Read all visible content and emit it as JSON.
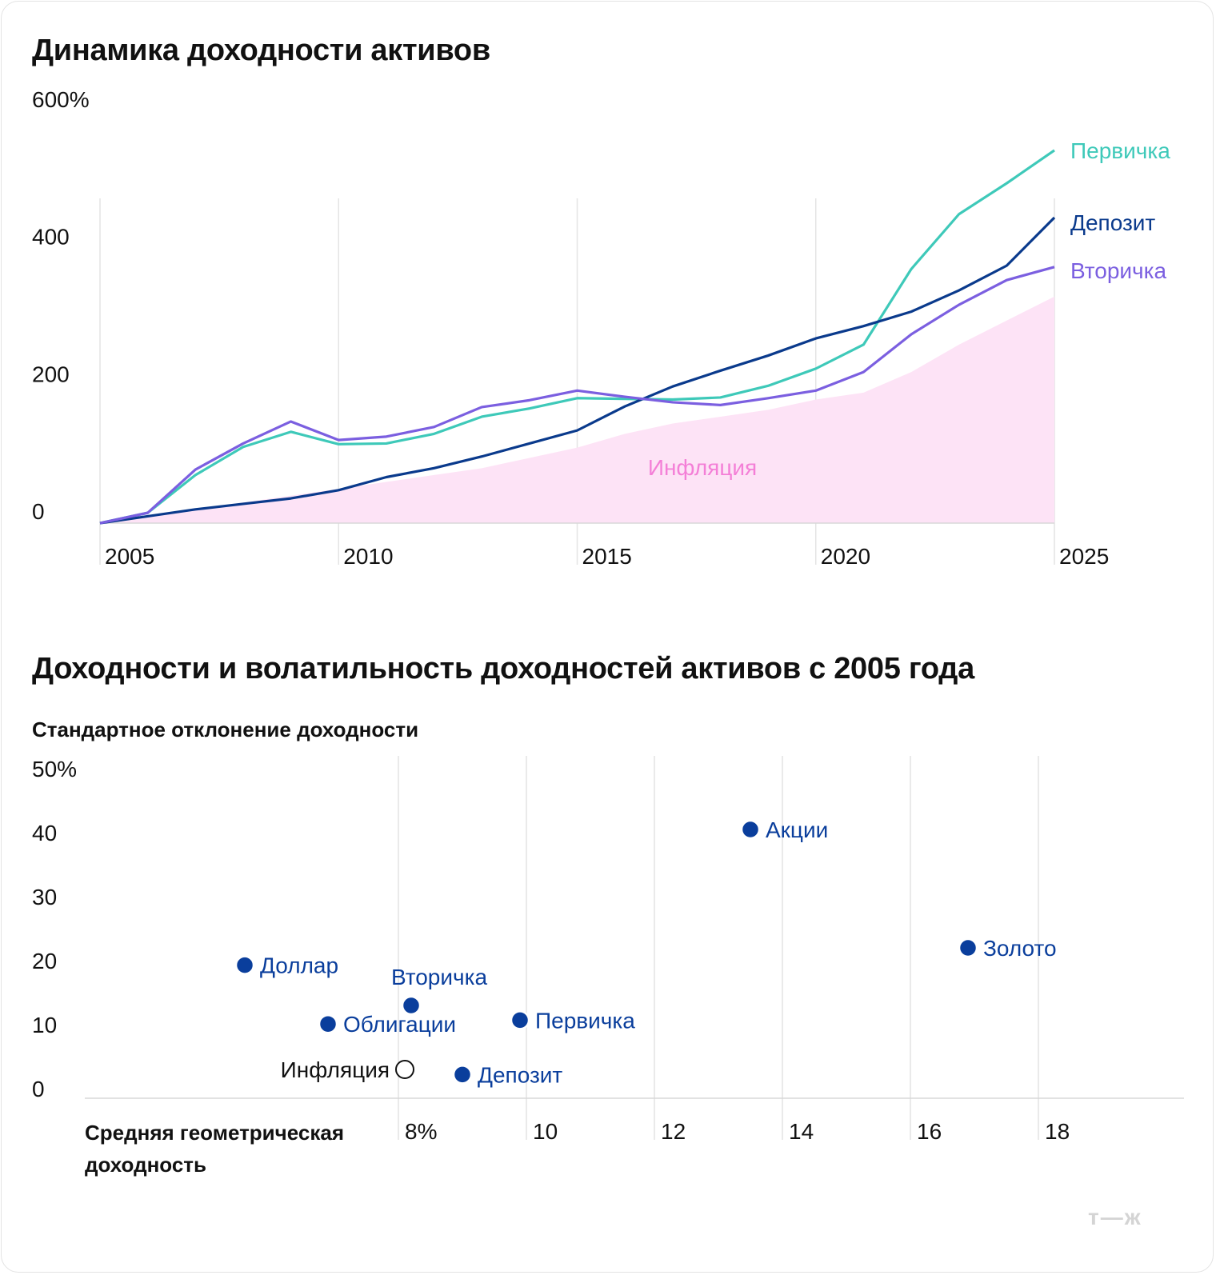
{
  "logo": "т—ж",
  "colors": {
    "pervichka": "#3ec9b9",
    "deposit": "#0a3a8c",
    "vtorichka": "#7b5fe0",
    "inflation_fill": "#fde3f6",
    "inflation_label": "#f47fd7",
    "dot": "#0a3e9c",
    "grid": "#e4e4e4"
  },
  "chart_data": [
    {
      "type": "line",
      "title": "Динамика доходности активов",
      "x_ticks": [
        "2005",
        "2010",
        "2015",
        "2020",
        "2025"
      ],
      "y_ticks": [
        "600%",
        "400",
        "200",
        "0"
      ],
      "ylim": [
        0,
        600
      ],
      "xlim": [
        2005,
        2025
      ],
      "x": [
        2005,
        2006,
        2007,
        2008,
        2009,
        2010,
        2011,
        2012,
        2013,
        2014,
        2015,
        2016,
        2017,
        2018,
        2019,
        2020,
        2021,
        2022,
        2023,
        2024,
        2025
      ],
      "series": [
        {
          "name": "Инфляция",
          "type": "area",
          "key": "inflation",
          "values": [
            0,
            10,
            20,
            30,
            40,
            50,
            60,
            70,
            80,
            95,
            110,
            130,
            145,
            155,
            165,
            180,
            190,
            220,
            260,
            295,
            330
          ]
        },
        {
          "name": "Первичка",
          "key": "pervichka",
          "values": [
            0,
            15,
            70,
            111,
            133,
            115,
            116,
            130,
            155,
            167,
            182,
            181,
            180,
            183,
            200,
            225,
            260,
            370,
            450,
            495,
            543
          ]
        },
        {
          "name": "Депозит",
          "key": "deposit",
          "values": [
            0,
            10,
            20,
            28,
            36,
            48,
            67,
            80,
            97,
            116,
            135,
            170,
            199,
            222,
            244,
            269,
            287,
            308,
            339,
            375,
            445
          ]
        },
        {
          "name": "Вторичка",
          "key": "vtorichka",
          "values": [
            0,
            15,
            78,
            116,
            148,
            121,
            126,
            140,
            169,
            179,
            193,
            184,
            176,
            172,
            182,
            193,
            220,
            275,
            318,
            354,
            373
          ]
        }
      ],
      "annotation": "Инфляция"
    },
    {
      "type": "scatter",
      "title": "Доходности и волатильность доходностей активов с 2005 года",
      "xlabel": "Средняя геометрическая доходность",
      "ylabel": "Стандартное отклонение доходности",
      "x_ticks": [
        "8%",
        "10",
        "12",
        "14",
        "16",
        "18"
      ],
      "x_tick_values": [
        8,
        10,
        12,
        14,
        16,
        18
      ],
      "y_ticks": [
        "50%",
        "40",
        "30",
        "20",
        "10",
        "0"
      ],
      "y_tick_values": [
        50,
        40,
        30,
        20,
        10,
        0
      ],
      "xlim": [
        3.1,
        20.3
      ],
      "ylim": [
        0,
        52
      ],
      "points": [
        {
          "name": "Акции",
          "x": 13.5,
          "y": 42,
          "filled": true,
          "label_side": "right"
        },
        {
          "name": "Золото",
          "x": 16.9,
          "y": 23.5,
          "filled": true,
          "label_side": "right"
        },
        {
          "name": "Доллар",
          "x": 5.6,
          "y": 20.8,
          "filled": true,
          "label_side": "right"
        },
        {
          "name": "Вторичка",
          "x": 8.2,
          "y": 14.5,
          "filled": true,
          "label_side": "above"
        },
        {
          "name": "Облигации",
          "x": 6.9,
          "y": 11.6,
          "filled": true,
          "label_side": "right"
        },
        {
          "name": "Первичка",
          "x": 9.9,
          "y": 12.2,
          "filled": true,
          "label_side": "right"
        },
        {
          "name": "Инфляция",
          "x": 8.1,
          "y": 4.5,
          "filled": false,
          "label_side": "left"
        },
        {
          "name": "Депозит",
          "x": 9.0,
          "y": 3.7,
          "filled": true,
          "label_side": "right"
        }
      ]
    }
  ]
}
